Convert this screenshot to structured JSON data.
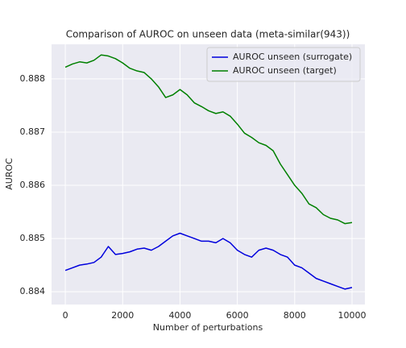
{
  "chart_data": {
    "type": "line",
    "title": "Comparison of AUROC on unseen data (meta-similar(943))",
    "x_label": "Number of perturbations",
    "y_label": "AUROC",
    "x": [
      0,
      250,
      500,
      750,
      1000,
      1250,
      1500,
      1750,
      2000,
      2250,
      2500,
      2750,
      3000,
      3250,
      3500,
      3750,
      4000,
      4250,
      4500,
      4750,
      5000,
      5250,
      5500,
      5750,
      6000,
      6250,
      6500,
      6750,
      7000,
      7250,
      7500,
      7750,
      8000,
      8250,
      8500,
      8750,
      9000,
      9250,
      9500,
      9750,
      10000
    ],
    "series": [
      {
        "name": "AUROC unseen (surrogate)",
        "color": "#0000dd",
        "values": [
          0.8844,
          0.88445,
          0.8845,
          0.88452,
          0.88455,
          0.88465,
          0.88485,
          0.8847,
          0.88472,
          0.88475,
          0.8848,
          0.88482,
          0.88478,
          0.88485,
          0.88495,
          0.88505,
          0.8851,
          0.88505,
          0.885,
          0.88495,
          0.88495,
          0.88492,
          0.885,
          0.88492,
          0.88478,
          0.8847,
          0.88465,
          0.88478,
          0.88482,
          0.88478,
          0.8847,
          0.88465,
          0.8845,
          0.88445,
          0.88435,
          0.88425,
          0.8842,
          0.88415,
          0.8841,
          0.88405,
          0.88408
        ]
      },
      {
        "name": "AUROC unseen (target)",
        "color": "#008000",
        "values": [
          0.88822,
          0.88828,
          0.88832,
          0.8883,
          0.88835,
          0.88845,
          0.88843,
          0.88838,
          0.8883,
          0.8882,
          0.88815,
          0.88812,
          0.888,
          0.88785,
          0.88765,
          0.8877,
          0.8878,
          0.8877,
          0.88755,
          0.88748,
          0.8874,
          0.88735,
          0.88738,
          0.8873,
          0.88715,
          0.88698,
          0.8869,
          0.8868,
          0.88675,
          0.88665,
          0.8864,
          0.8862,
          0.886,
          0.88585,
          0.88565,
          0.88558,
          0.88545,
          0.88538,
          0.88535,
          0.88528,
          0.8853
        ]
      }
    ],
    "xlim": [
      -480,
      10450
    ],
    "ylim": [
      0.88376,
      0.88865
    ],
    "xticks": [
      0,
      2000,
      4000,
      6000,
      8000,
      10000
    ],
    "yticks": [
      0.884,
      0.885,
      0.886,
      0.887,
      0.888
    ],
    "grid": true,
    "legend": "upper right"
  }
}
